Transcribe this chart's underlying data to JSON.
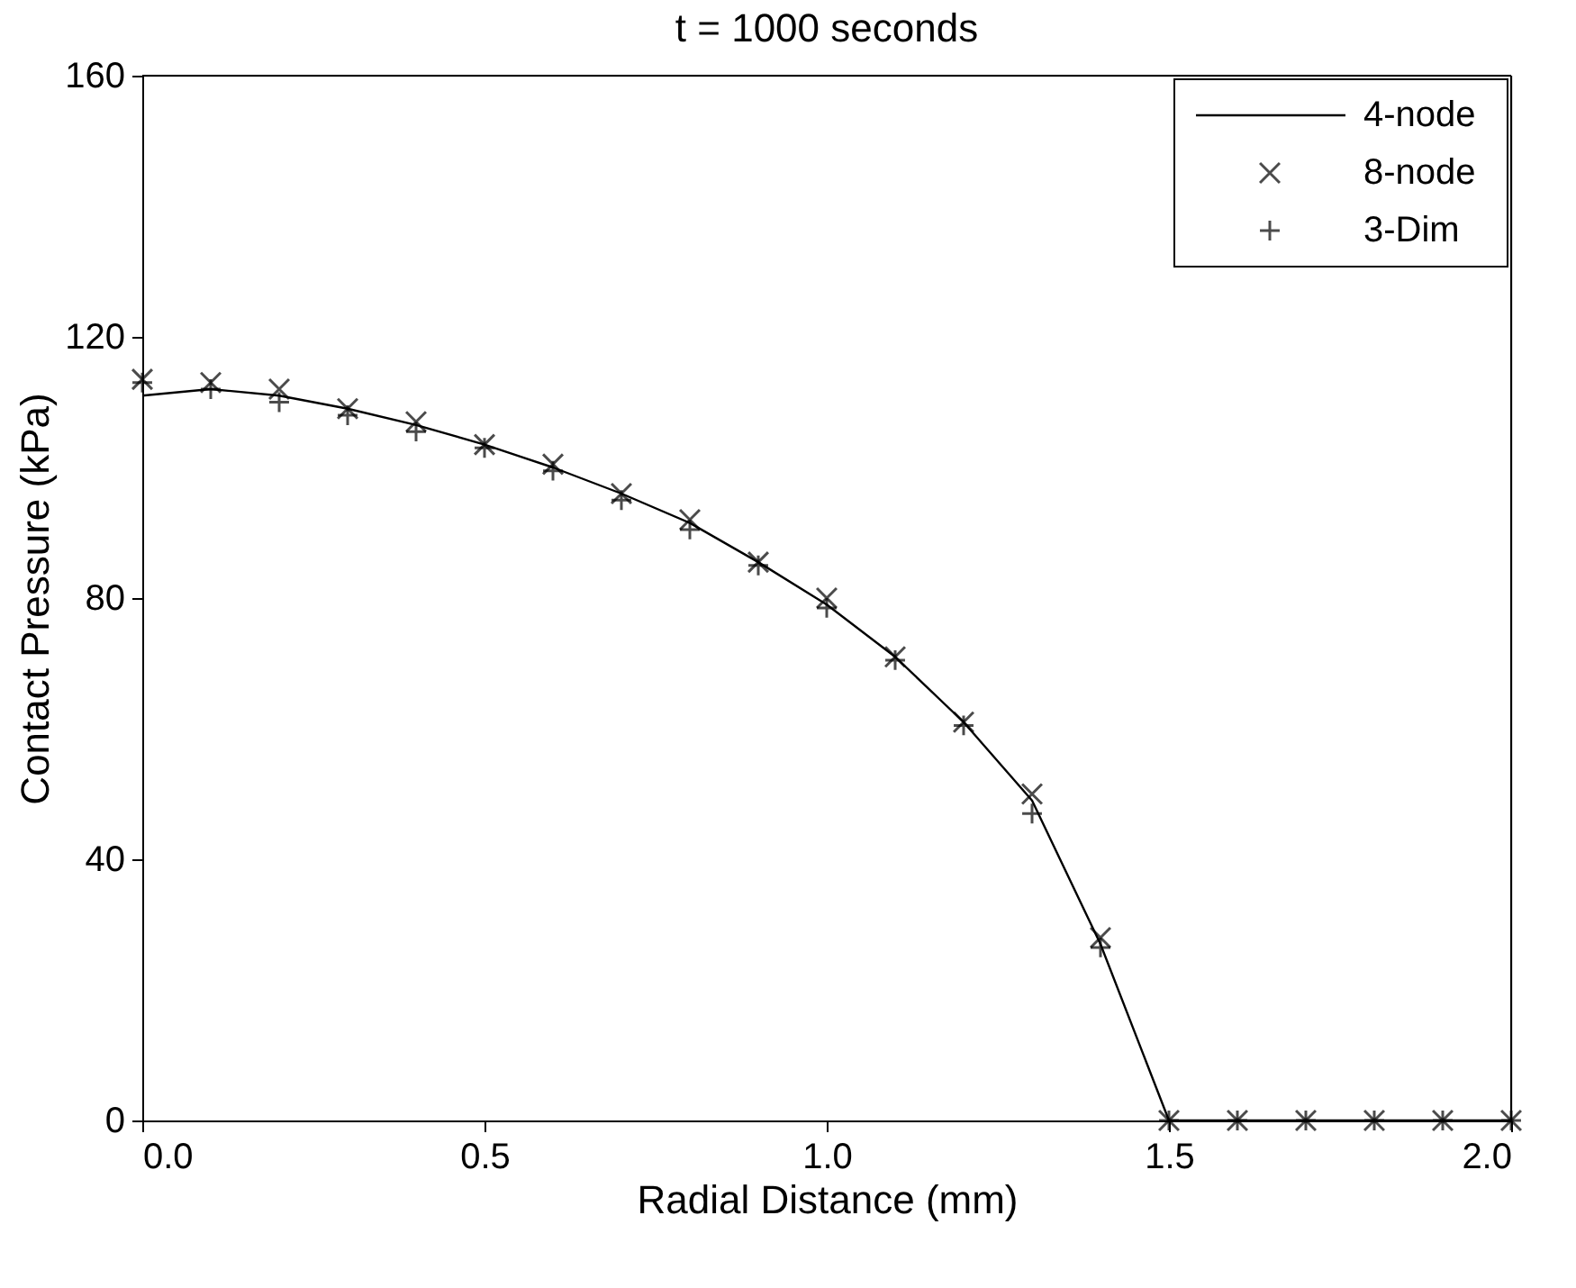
{
  "chart_data": {
    "type": "line",
    "title": "t = 1000 seconds",
    "xlabel": "Radial Distance (mm)",
    "ylabel": "Contact Pressure (kPa)",
    "x": [
      0.0,
      0.1,
      0.2,
      0.3,
      0.4,
      0.5,
      0.6,
      0.7,
      0.8,
      0.9,
      1.0,
      1.1,
      1.2,
      1.3,
      1.4,
      1.5,
      1.6,
      1.7,
      1.8,
      1.9,
      2.0
    ],
    "series": [
      {
        "name": "4-node",
        "type": "line",
        "color": "#000000",
        "marker": "none",
        "line_style": "solid",
        "values": [
          111,
          112,
          111,
          109,
          106.5,
          103.5,
          100,
          96,
          91.5,
          85.5,
          79,
          71,
          61,
          49,
          27,
          0,
          0,
          0,
          0,
          0,
          0
        ]
      },
      {
        "name": "8-node",
        "type": "scatter",
        "color": "#000000",
        "marker": "x",
        "values": [
          113.5,
          113,
          112,
          109,
          107,
          103.5,
          100.5,
          96,
          92,
          85.5,
          80,
          71,
          61,
          50,
          28,
          0,
          0,
          0,
          0,
          0,
          0
        ]
      },
      {
        "name": "3-Dim",
        "type": "scatter",
        "color": "#000000",
        "marker": "cross",
        "values": [
          113,
          112,
          110,
          108,
          105.5,
          103,
          99.5,
          95,
          90.5,
          85,
          78.5,
          70.5,
          60.5,
          47,
          26.5,
          0,
          0,
          0,
          0,
          0,
          0
        ]
      }
    ],
    "xlim": [
      0,
      2.0
    ],
    "xticks": [
      {
        "value": 0,
        "label": "0.0"
      },
      0.5,
      {
        "value": 1,
        "label": "1.0"
      },
      1.5,
      {
        "value": 2,
        "label": "2.0"
      }
    ],
    "ylim": [
      0,
      160
    ],
    "yticks": [
      0,
      40,
      80,
      120,
      160
    ],
    "grid": false,
    "legend": "top right"
  }
}
